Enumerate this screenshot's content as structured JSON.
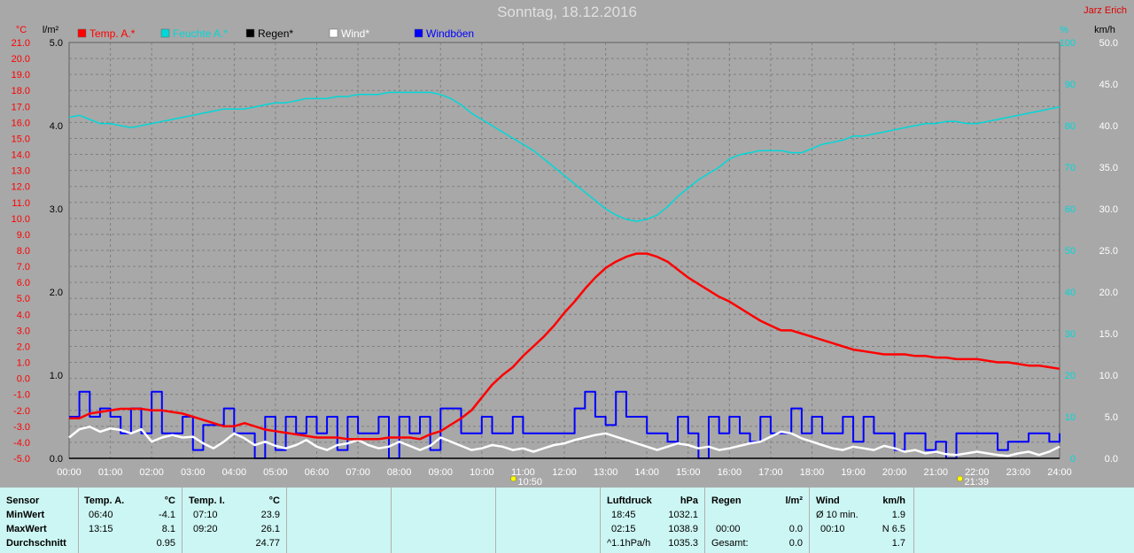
{
  "header": {
    "title": "Sonntag, 18.12.2016",
    "author": "Jarz Erich"
  },
  "colors": {
    "background": "#a8a8a8",
    "plot_bg": "#a8a8a8",
    "grid": "#808080",
    "temp": "#ff0000",
    "humidity": "#00d8d8",
    "rain": "#000000",
    "wind": "#ffffff",
    "gust": "#0000ff",
    "panel_bg": "#ccf6f3"
  },
  "chart_data": {
    "type": "line",
    "title": "Sonntag, 18.12.2016",
    "x_ticks": [
      "00:00",
      "01:00",
      "02:00",
      "03:00",
      "04:00",
      "05:00",
      "06:00",
      "07:00",
      "08:00",
      "09:00",
      "10:00",
      "11:00",
      "12:00",
      "13:00",
      "14:00",
      "15:00",
      "16:00",
      "17:00",
      "18:00",
      "19:00",
      "20:00",
      "21:00",
      "22:00",
      "23:00",
      "24:00"
    ],
    "axes": {
      "temp": {
        "unit": "°C",
        "range": [
          -5.0,
          21.0
        ],
        "ticks": [
          "21.0",
          "20.0",
          "19.0",
          "18.0",
          "17.0",
          "16.0",
          "15.0",
          "14.0",
          "13.0",
          "12.0",
          "11.0",
          "10.0",
          "9.0",
          "8.0",
          "7.0",
          "6.0",
          "5.0",
          "4.0",
          "3.0",
          "2.0",
          "1.0",
          "0.0",
          "-1.0",
          "-2.0",
          "-3.0",
          "-4.0",
          "-5.0"
        ]
      },
      "rain": {
        "unit": "l/m²",
        "range": [
          0.0,
          5.0
        ],
        "ticks": [
          "5.0",
          "4.0",
          "3.0",
          "2.0",
          "1.0",
          "0.0"
        ]
      },
      "humidity": {
        "unit": "%",
        "range": [
          0,
          100
        ],
        "ticks": [
          "100",
          "90",
          "80",
          "70",
          "60",
          "50",
          "40",
          "30",
          "20",
          "10",
          "0"
        ]
      },
      "wind": {
        "unit": "km/h",
        "range": [
          0.0,
          50.0
        ],
        "ticks": [
          "50.0",
          "45.0",
          "40.0",
          "35.0",
          "30.0",
          "25.0",
          "20.0",
          "15.0",
          "10.0",
          "5.0",
          "0.0"
        ]
      }
    },
    "legend": [
      "Temp. A.*",
      "Feuchte A.*",
      "Regen*",
      "Wind*",
      "Windböen"
    ],
    "markers": [
      {
        "label": "10:50",
        "x": 10.83
      },
      {
        "label": "21:39",
        "x": 21.65
      }
    ],
    "series": [
      {
        "name": "Temp. A.*",
        "axis": "temp",
        "x": [
          0,
          0.25,
          0.5,
          0.75,
          1,
          1.25,
          1.5,
          1.75,
          2,
          2.25,
          2.5,
          2.75,
          3,
          3.25,
          3.5,
          3.75,
          4,
          4.25,
          4.5,
          4.75,
          5,
          5.25,
          5.5,
          5.75,
          6,
          6.25,
          6.5,
          6.75,
          7,
          7.25,
          7.5,
          7.75,
          8,
          8.25,
          8.5,
          8.75,
          9,
          9.25,
          9.5,
          9.75,
          10,
          10.25,
          10.5,
          10.75,
          11,
          11.25,
          11.5,
          11.75,
          12,
          12.25,
          12.5,
          12.75,
          13,
          13.25,
          13.5,
          13.75,
          14,
          14.25,
          14.5,
          14.75,
          15,
          15.25,
          15.5,
          15.75,
          16,
          16.25,
          16.5,
          16.75,
          17,
          17.25,
          17.5,
          17.75,
          18,
          18.25,
          18.5,
          18.75,
          19,
          19.25,
          19.5,
          19.75,
          20,
          20.25,
          20.5,
          20.75,
          21,
          21.25,
          21.5,
          21.75,
          22,
          22.25,
          22.5,
          22.75,
          23,
          23.25,
          23.5,
          23.75,
          24
        ],
        "y": [
          -2.5,
          -2.5,
          -2.2,
          -2.1,
          -2.0,
          -1.9,
          -1.9,
          -1.9,
          -2.0,
          -2.0,
          -2.1,
          -2.2,
          -2.4,
          -2.6,
          -2.8,
          -3.0,
          -3.0,
          -2.8,
          -3.0,
          -3.2,
          -3.3,
          -3.4,
          -3.5,
          -3.6,
          -3.7,
          -3.7,
          -3.7,
          -3.8,
          -3.8,
          -3.8,
          -3.8,
          -3.7,
          -3.7,
          -3.7,
          -3.8,
          -3.5,
          -3.3,
          -2.9,
          -2.5,
          -2.0,
          -1.2,
          -0.4,
          0.2,
          0.7,
          1.4,
          2.0,
          2.6,
          3.3,
          4.1,
          4.8,
          5.6,
          6.3,
          6.9,
          7.3,
          7.6,
          7.8,
          7.8,
          7.6,
          7.3,
          6.8,
          6.3,
          5.9,
          5.5,
          5.1,
          4.8,
          4.4,
          4.0,
          3.6,
          3.3,
          3.0,
          3.0,
          2.8,
          2.6,
          2.4,
          2.2,
          2.0,
          1.8,
          1.7,
          1.6,
          1.5,
          1.5,
          1.5,
          1.4,
          1.4,
          1.3,
          1.3,
          1.2,
          1.2,
          1.2,
          1.1,
          1.0,
          1.0,
          0.9,
          0.8,
          0.8,
          0.7,
          0.6
        ]
      },
      {
        "name": "Feuchte A.*",
        "axis": "humidity",
        "x": [
          0,
          0.25,
          0.5,
          0.75,
          1,
          1.25,
          1.5,
          1.75,
          2,
          2.25,
          2.5,
          2.75,
          3,
          3.25,
          3.5,
          3.75,
          4,
          4.25,
          4.5,
          4.75,
          5,
          5.25,
          5.5,
          5.75,
          6,
          6.25,
          6.5,
          6.75,
          7,
          7.25,
          7.5,
          7.75,
          8,
          8.25,
          8.5,
          8.75,
          9,
          9.25,
          9.5,
          9.75,
          10,
          10.25,
          10.5,
          10.75,
          11,
          11.25,
          11.5,
          11.75,
          12,
          12.25,
          12.5,
          12.75,
          13,
          13.25,
          13.5,
          13.75,
          14,
          14.25,
          14.5,
          14.75,
          15,
          15.25,
          15.5,
          15.75,
          16,
          16.25,
          16.5,
          16.75,
          17,
          17.25,
          17.5,
          17.75,
          18,
          18.25,
          18.5,
          18.75,
          19,
          19.25,
          19.5,
          19.75,
          20,
          20.25,
          20.5,
          20.75,
          21,
          21.25,
          21.5,
          21.75,
          22,
          22.25,
          22.5,
          22.75,
          23,
          23.25,
          23.5,
          23.75,
          24
        ],
        "y": [
          82,
          82.5,
          81.5,
          80.5,
          80.5,
          80,
          79.5,
          80,
          80.5,
          81,
          81.5,
          82,
          82.5,
          83,
          83.5,
          84,
          84,
          84,
          84.5,
          85,
          85.5,
          85.5,
          86,
          86.5,
          86.5,
          86.5,
          87,
          87,
          87.5,
          87.5,
          87.5,
          88,
          88,
          88,
          88,
          88,
          87.5,
          86.5,
          85,
          83,
          81.5,
          80,
          78.5,
          77,
          75.5,
          74,
          72,
          70,
          68,
          66,
          64,
          62,
          60,
          58.5,
          57.5,
          57,
          57.5,
          58.5,
          60.5,
          63,
          65,
          67,
          68.5,
          70,
          72,
          73,
          73.5,
          74,
          74,
          74,
          73.5,
          73.5,
          74.5,
          75.5,
          76,
          76.5,
          77.5,
          77.5,
          78,
          78.5,
          79,
          79.5,
          80,
          80.5,
          80.5,
          81,
          81,
          80.5,
          80.5,
          81,
          81.5,
          82,
          82.5,
          83,
          83.5,
          84,
          84.5
        ]
      },
      {
        "name": "Regen*",
        "axis": "rain",
        "x": [
          0,
          24
        ],
        "y": [
          0,
          0
        ]
      },
      {
        "name": "Wind*",
        "axis": "wind",
        "x": [
          0,
          0.25,
          0.5,
          0.75,
          1,
          1.25,
          1.5,
          1.75,
          2,
          2.25,
          2.5,
          2.75,
          3,
          3.25,
          3.5,
          3.75,
          4,
          4.25,
          4.5,
          4.75,
          5,
          5.25,
          5.5,
          5.75,
          6,
          6.25,
          6.5,
          6.75,
          7,
          7.25,
          7.5,
          7.75,
          8,
          8.25,
          8.5,
          8.75,
          9,
          9.25,
          9.5,
          9.75,
          10,
          10.25,
          10.5,
          10.75,
          11,
          11.25,
          11.5,
          11.75,
          12,
          12.25,
          12.5,
          12.75,
          13,
          13.25,
          13.5,
          13.75,
          14,
          14.25,
          14.5,
          14.75,
          15,
          15.25,
          15.5,
          15.75,
          16,
          16.25,
          16.5,
          16.75,
          17,
          17.25,
          17.5,
          17.75,
          18,
          18.25,
          18.5,
          18.75,
          19,
          19.25,
          19.5,
          19.75,
          20,
          20.25,
          20.5,
          20.75,
          21,
          21.25,
          21.5,
          21.75,
          22,
          22.25,
          22.5,
          22.75,
          23,
          23.25,
          23.5,
          23.75,
          24
        ],
        "y": [
          2.5,
          3.5,
          3.8,
          3.2,
          3.6,
          3.4,
          3.0,
          3.5,
          2.0,
          2.5,
          2.8,
          2.5,
          2.6,
          1.8,
          1.2,
          2.0,
          3.0,
          2.4,
          1.6,
          2.0,
          1.5,
          1.2,
          1.6,
          2.2,
          1.4,
          1.0,
          1.6,
          1.8,
          2.2,
          1.6,
          1.2,
          1.4,
          2.0,
          1.5,
          1.0,
          1.5,
          2.5,
          2.0,
          1.5,
          1.0,
          1.2,
          1.6,
          1.4,
          1.0,
          1.2,
          0.8,
          1.2,
          1.6,
          1.8,
          2.2,
          2.5,
          2.8,
          3.0,
          2.6,
          2.2,
          1.8,
          1.4,
          1.0,
          1.4,
          1.8,
          1.6,
          1.2,
          1.4,
          1.0,
          1.2,
          1.5,
          1.8,
          2.0,
          2.6,
          3.2,
          3.0,
          2.4,
          2.0,
          1.6,
          1.2,
          1.0,
          1.4,
          1.2,
          1.0,
          1.5,
          1.2,
          0.8,
          1.0,
          0.6,
          0.8,
          0.5,
          0.4,
          0.6,
          0.8,
          0.6,
          0.4,
          0.3,
          0.6,
          0.8,
          0.4,
          0.8,
          1.4
        ]
      },
      {
        "name": "Windböen",
        "axis": "wind",
        "x": [
          0,
          0.25,
          0.5,
          0.75,
          1,
          1.25,
          1.5,
          1.75,
          2,
          2.25,
          2.5,
          2.75,
          3,
          3.25,
          3.5,
          3.75,
          4,
          4.25,
          4.5,
          4.75,
          5,
          5.25,
          5.5,
          5.75,
          6,
          6.25,
          6.5,
          6.75,
          7,
          7.25,
          7.5,
          7.75,
          8,
          8.25,
          8.5,
          8.75,
          9,
          9.25,
          9.5,
          9.75,
          10,
          10.25,
          10.5,
          10.75,
          11,
          11.25,
          11.5,
          11.75,
          12,
          12.25,
          12.5,
          12.75,
          13,
          13.25,
          13.5,
          13.75,
          14,
          14.25,
          14.5,
          14.75,
          15,
          15.25,
          15.5,
          15.75,
          16,
          16.25,
          16.5,
          16.75,
          17,
          17.25,
          17.5,
          17.75,
          18,
          18.25,
          18.5,
          18.75,
          19,
          19.25,
          19.5,
          19.75,
          20,
          20.25,
          20.5,
          20.75,
          21,
          21.25,
          21.5,
          21.75,
          22,
          22.25,
          22.5,
          22.75,
          23,
          23.25,
          23.5,
          23.75,
          24
        ],
        "y": [
          5,
          8,
          5,
          6,
          5,
          3,
          6,
          3,
          8,
          3,
          3,
          5,
          1,
          4,
          4,
          6,
          3,
          3,
          0,
          5,
          1,
          5,
          3,
          5,
          3,
          5,
          1,
          5,
          3,
          3,
          5,
          0,
          5,
          3,
          5,
          1,
          6,
          6,
          3,
          3,
          5,
          3,
          3,
          5,
          3,
          3,
          3,
          3,
          3,
          6,
          8,
          5,
          4,
          8,
          5,
          5,
          3,
          3,
          2,
          5,
          3,
          0,
          5,
          3,
          5,
          3,
          2,
          5,
          3,
          3,
          6,
          3,
          5,
          3,
          3,
          5,
          2,
          5,
          3,
          3,
          1,
          3,
          3,
          1,
          2,
          0,
          3,
          3,
          3,
          3,
          1,
          2,
          2,
          3,
          3,
          2,
          3
        ]
      }
    ]
  },
  "stats": {
    "sensor": {
      "header": "Sensor",
      "rows": [
        "MinWert",
        "MaxWert",
        "Durchschnitt"
      ]
    },
    "temp_a": {
      "header": "Temp. A.",
      "unit": "°C",
      "time": [
        "06:40",
        "13:15",
        ""
      ],
      "value": [
        "-4.1",
        "8.1",
        "0.95"
      ]
    },
    "temp_i": {
      "header": "Temp. I.",
      "unit": "°C",
      "time": [
        "07:10",
        "09:20",
        ""
      ],
      "value": [
        "23.9",
        "26.1",
        "24.77"
      ]
    },
    "pressure": {
      "header": "Luftdruck",
      "unit": "hPa",
      "time": [
        "18:45",
        "02:15",
        "^1.1hPa/h"
      ],
      "value": [
        "1032.1",
        "1038.9",
        "1035.3"
      ]
    },
    "rain": {
      "header": "Regen",
      "unit": "l/m²",
      "time": [
        "",
        "00:00",
        "Gesamt:"
      ],
      "value": [
        "",
        "0.0",
        "0.0"
      ]
    },
    "wind": {
      "header": "Wind",
      "unit": "km/h",
      "time": [
        "Ø 10 min.",
        "00:10",
        ""
      ],
      "value": [
        "1.9",
        "N 6.5",
        "1.7"
      ]
    }
  }
}
